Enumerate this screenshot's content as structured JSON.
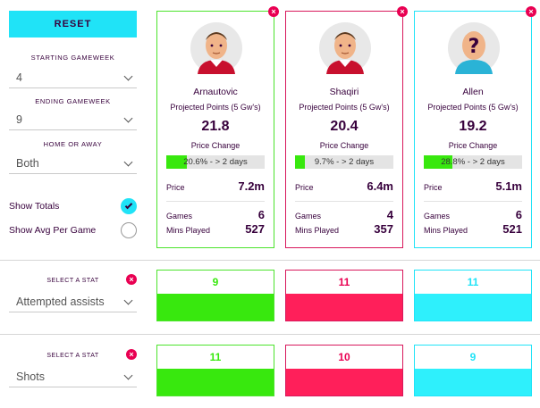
{
  "filters": {
    "reset_label": "RESET",
    "starting_gameweek": {
      "label": "STARTING GAMEWEEK",
      "value": "4"
    },
    "ending_gameweek": {
      "label": "ENDING GAMEWEEK",
      "value": "9"
    },
    "home_or_away": {
      "label": "HOME OR AWAY",
      "value": "Both"
    },
    "show_totals": {
      "label": "Show Totals",
      "checked": true
    },
    "show_avg": {
      "label": "Show Avg Per Game",
      "checked": false
    }
  },
  "players": [
    {
      "name": "Arnautovic",
      "color": "#4ce32c",
      "fill_color": "#38e80e",
      "pp_label": "Projected Points (5 Gw's)",
      "pp_value": "21.8",
      "pc_label": "Price Change",
      "pc_text": "20.6% - > 2 days",
      "pc_percent": 20.6,
      "price_label": "Price",
      "price": "7.2m",
      "games_label": "Games",
      "games": "6",
      "mins_label": "Mins Played",
      "mins": "527",
      "avatar": "player-avatar-icon"
    },
    {
      "name": "Shaqiri",
      "color": "#d8185c",
      "fill_color": "#38e80e",
      "pp_label": "Projected Points (5 Gw's)",
      "pp_value": "20.4",
      "pc_label": "Price Change",
      "pc_text": "9.7% - > 2 days",
      "pc_percent": 9.7,
      "price_label": "Price",
      "price": "6.4m",
      "games_label": "Games",
      "games": "4",
      "mins_label": "Mins Played",
      "mins": "357",
      "avatar": "player-avatar-icon"
    },
    {
      "name": "Allen",
      "color": "#20e3f7",
      "fill_color": "#38e80e",
      "pp_label": "Projected Points (5 Gw's)",
      "pp_value": "19.2",
      "pc_label": "Price Change",
      "pc_text": "28.8% - > 2 days",
      "pc_percent": 28.8,
      "price_label": "Price",
      "price": "5.1m",
      "games_label": "Games",
      "games": "6",
      "mins_label": "Mins Played",
      "mins": "521",
      "avatar": "unknown-player-icon"
    }
  ],
  "stats": [
    {
      "label": "SELECT A STAT",
      "value": "Attempted assists",
      "values": [
        "9",
        "11",
        "11"
      ]
    },
    {
      "label": "SELECT A STAT",
      "value": "Shots",
      "values": [
        "11",
        "10",
        "9"
      ]
    }
  ],
  "colors": {
    "green": "#38e80e",
    "pink": "#ff1f5a",
    "cyan": "#2ef0fc",
    "navy": "#37003c",
    "close": "#e90052"
  }
}
